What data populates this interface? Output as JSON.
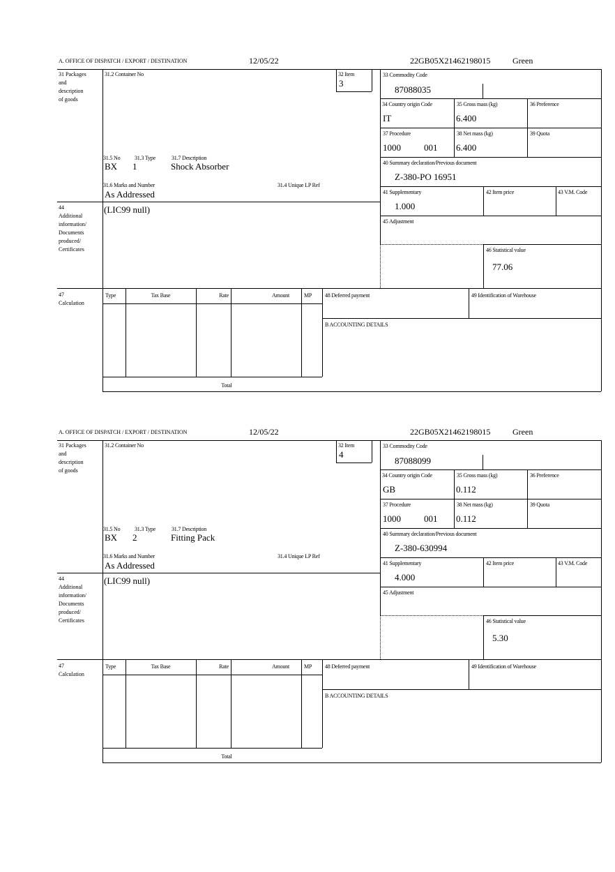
{
  "labels": {
    "office": "A. OFFICE OF DISPATCH / EXPORT / DESTINATION",
    "packages": [
      "31 Packages",
      "and",
      "description",
      "of goods"
    ],
    "container_no": "31.2 Container No",
    "item": "32 Item",
    "no": "31.5 No",
    "type": "31.3 Type",
    "description": "31.7 Description",
    "marks": "31.6 Marks and Number",
    "unique_lp_ref": "31.4 Unique LP Ref",
    "additional": [
      "44",
      "Additional",
      "information/",
      "Documents",
      "produced/",
      "Certificates"
    ],
    "commodity_code": "33 Commodity Code",
    "country_origin": "34 Country origin Code",
    "gross_mass": "35 Gross mass (kg)",
    "preference": "36 Preference",
    "procedure": "37 Procedure",
    "net_mass": "38 Net mass (kg)",
    "quota": "39 Quota",
    "summary_declaration": "40 Summary declaration/Previous document",
    "supplementary": "41 Supplementary",
    "item_price": "42 Item price",
    "vm_code": "43 V.M. Code",
    "adjustment": "45 Adjustment",
    "statistical_value": "46 Statistical value",
    "calculation": [
      "47",
      "Calculation"
    ],
    "calc_columns": [
      "Type",
      "Tax Base",
      "Rate",
      "Amount",
      "MP"
    ],
    "total": "Total",
    "deferred_payment": "48 Deferred payment",
    "warehouse": "49 Identification of Warehouse",
    "accounting": "B ACCOUNTING DETAILS"
  },
  "forms": [
    {
      "date": "12/05/22",
      "reference": "22GB05X21462198015",
      "route": "Green",
      "item": "3",
      "package_kind": "BX",
      "package_count": "1",
      "description": "Shock Absorber",
      "marks": "As Addressed",
      "additional_info": "(LIC99 null)",
      "commodity_code": "87088035",
      "country_origin": "IT",
      "gross_mass": "6.400",
      "procedure": "1000",
      "procedure_extra": "001",
      "net_mass": "6.400",
      "previous_document": "Z-380-PO 16951",
      "supplementary": "1.000",
      "statistical_value": "77.06"
    },
    {
      "date": "12/05/22",
      "reference": "22GB05X21462198015",
      "route": "Green",
      "item": "4",
      "package_kind": "BX",
      "package_count": "2",
      "description": "Fitting Pack",
      "marks": "As Addressed",
      "additional_info": "(LIC99 null)",
      "commodity_code": "87088099",
      "country_origin": "GB",
      "gross_mass": "0.112",
      "procedure": "1000",
      "procedure_extra": "001",
      "net_mass": "0.112",
      "previous_document": "Z-380-630994",
      "supplementary": "4.000",
      "statistical_value": "5.30"
    }
  ]
}
